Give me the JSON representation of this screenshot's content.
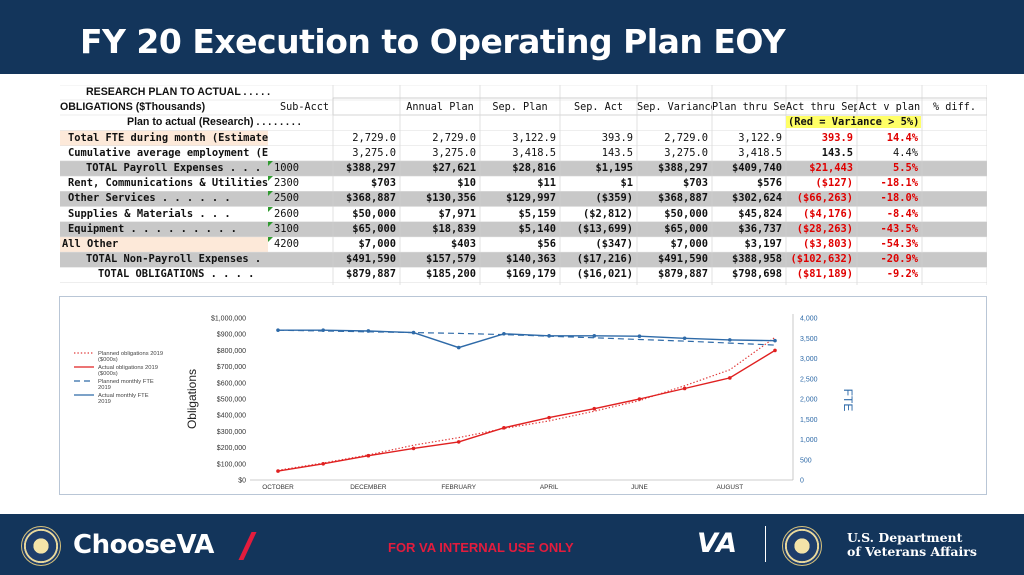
{
  "header": {
    "title": "FY 20 Execution to Operating Plan EOY"
  },
  "table": {
    "title_line1": "RESEARCH PLAN TO ACTUAL . . . . .",
    "title_line2": "OBLIGATIONS ($Thousands)",
    "title_line3": "Plan to actual (Research) . . . . . . . .",
    "variance_note": "(Red  =  Variance  >  5%)",
    "columns": [
      "Sub-Acct",
      "Annual Plan",
      "Sep. Plan",
      "Sep. Act",
      "Sep. Variance",
      "Plan thru Sep",
      "Act thru Sep",
      "Act v plan",
      "% diff."
    ],
    "rows": [
      {
        "label": "Total FTE during month  (Estimated)",
        "sub": "",
        "cells": [
          "2,729.0",
          "2,729.0",
          "3,122.9",
          "393.9",
          "2,729.0",
          "3,122.9",
          "393.9",
          "14.4%"
        ],
        "act_red": true,
        "pct_red": true
      },
      {
        "label": "Cumulative average employment (Est.)",
        "sub": "",
        "cells": [
          "3,275.0",
          "3,275.0",
          "3,418.5",
          "143.5",
          "3,275.0",
          "3,418.5",
          "143.5",
          "4.4%"
        ],
        "act_red": false,
        "pct_red": false
      },
      {
        "label": "TOTAL Payroll Expenses . . . .",
        "sub": "1000",
        "cells": [
          "$388,297",
          "$27,621",
          "$28,816",
          "$1,195",
          "$388,297",
          "$409,740",
          "$21,443",
          "5.5%"
        ],
        "act_red": true,
        "pct_red": true
      },
      {
        "label": "Rent, Communications & Utilities",
        "sub": "2300",
        "cells": [
          "$703",
          "$10",
          "$11",
          "$1",
          "$703",
          "$576",
          "($127)",
          "-18.1%"
        ],
        "act_red": true,
        "pct_red": true
      },
      {
        "label": "Other Services  . . . . . .",
        "sub": "2500",
        "cells": [
          "$368,887",
          "$130,356",
          "$129,997",
          "($359)",
          "$368,887",
          "$302,624",
          "($66,263)",
          "-18.0%"
        ],
        "act_red": true,
        "pct_red": true
      },
      {
        "label": "Supplies & Materials  . . .",
        "sub": "2600",
        "cells": [
          "$50,000",
          "$7,971",
          "$5,159",
          "($2,812)",
          "$50,000",
          "$45,824",
          "($4,176)",
          "-8.4%"
        ],
        "act_red": true,
        "pct_red": true
      },
      {
        "label": "Equipment . . . . . . . . .",
        "sub": "3100",
        "cells": [
          "$65,000",
          "$18,839",
          "$5,140",
          "($13,699)",
          "$65,000",
          "$36,737",
          "($28,263)",
          "-43.5%"
        ],
        "act_red": true,
        "pct_red": true
      },
      {
        "label": "All Other",
        "sub": "4200",
        "cells": [
          "$7,000",
          "$403",
          "$56",
          "($347)",
          "$7,000",
          "$3,197",
          "($3,803)",
          "-54.3%"
        ],
        "act_red": true,
        "pct_red": true
      },
      {
        "label": "TOTAL Non-Payroll Expenses .",
        "sub": "",
        "cells": [
          "$491,590",
          "$157,579",
          "$140,363",
          "($17,216)",
          "$491,590",
          "$388,958",
          "($102,632)",
          "-20.9%"
        ],
        "act_red": true,
        "pct_red": true
      },
      {
        "label": "TOTAL OBLIGATIONS  . . . .",
        "sub": "",
        "cells": [
          "$879,887",
          "$185,200",
          "$169,179",
          "($16,021)",
          "$879,887",
          "$798,698",
          "($81,189)",
          "-9.2%"
        ],
        "act_red": true,
        "pct_red": true
      }
    ],
    "colors": {
      "gray_band": "#c8c8c8",
      "peach": "#fde9d9",
      "yellow": "#ffff66",
      "red": "#e00000"
    }
  },
  "chart_data": {
    "type": "line",
    "x": [
      "OCTOBER",
      "NOVEMBER",
      "DECEMBER",
      "JANUARY",
      "FEBRUARY",
      "MARCH",
      "APRIL",
      "MAY",
      "JUNE",
      "JULY",
      "AUGUST",
      "SEPTEMBER"
    ],
    "x_tick_labels": [
      "OCTOBER",
      "DECEMBER",
      "FEBRUARY",
      "APRIL",
      "JUNE",
      "AUGUST"
    ],
    "ylabel": "Obligations",
    "y2label": "FTE",
    "ylim": [
      0,
      1000000
    ],
    "y2lim": [
      0,
      4000
    ],
    "y_ticks": [
      "$0",
      "$100,000",
      "$200,000",
      "$300,000",
      "$400,000",
      "$500,000",
      "$600,000",
      "$700,000",
      "$800,000",
      "$900,000",
      "$1,000,000"
    ],
    "y2_ticks": [
      "0",
      "500",
      "1,000",
      "1,500",
      "2,000",
      "2,500",
      "3,000",
      "3,500",
      "4,000"
    ],
    "series": [
      {
        "name": "Planned obligations 2019 ($000s)",
        "axis": "left",
        "style": "dotted",
        "color": "#e03a3a",
        "values": [
          60000,
          105000,
          155000,
          215000,
          262000,
          318000,
          365000,
          425000,
          490000,
          582000,
          680000,
          880000
        ]
      },
      {
        "name": "Actual obligations 2019 ($000s)",
        "axis": "left",
        "style": "solid",
        "color": "#e02020",
        "values": [
          55000,
          100000,
          150000,
          195000,
          235000,
          322000,
          385000,
          440000,
          500000,
          565000,
          630000,
          800000
        ]
      },
      {
        "name": "Planned monthly FTE 2019",
        "axis": "right",
        "style": "dashed",
        "color": "#2e6aa8",
        "values": [
          3700,
          3680,
          3660,
          3640,
          3620,
          3590,
          3550,
          3510,
          3470,
          3430,
          3380,
          3330
        ]
      },
      {
        "name": "Actual monthly FTE 2019",
        "axis": "right",
        "style": "solid",
        "color": "#2e6aa8",
        "values": [
          3700,
          3700,
          3680,
          3640,
          3270,
          3610,
          3560,
          3560,
          3550,
          3500,
          3460,
          3440
        ]
      }
    ],
    "legend_position": "left"
  },
  "footer": {
    "choose": "Choose",
    "va": "VA",
    "notice": "FOR VA INTERNAL USE ONLY",
    "va_logo": "VA",
    "dept_line1": "U.S. Department",
    "dept_line2": "of Veterans Affairs",
    "colors": {
      "navy": "#13355b",
      "red": "#e31c3d"
    }
  }
}
